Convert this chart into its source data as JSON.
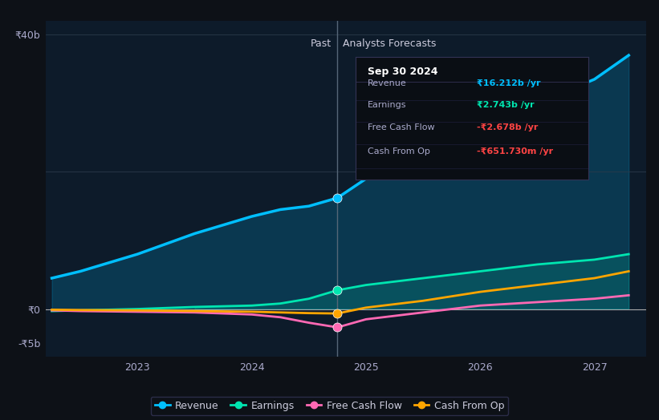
{
  "bg_color": "#0d1117",
  "chart_bg": "#0d1b2a",
  "ylim": [
    -7,
    42
  ],
  "xlim": [
    2022.2,
    2027.45
  ],
  "x_past_end": 2024.75,
  "x_label_past": "Past",
  "x_label_forecast": "Analysts Forecasts",
  "legend": [
    {
      "label": "Revenue",
      "color": "#00bfff"
    },
    {
      "label": "Earnings",
      "color": "#00e5b0"
    },
    {
      "label": "Free Cash Flow",
      "color": "#ff69b4"
    },
    {
      "label": "Cash From Op",
      "color": "#ffa500"
    }
  ],
  "tooltip": {
    "date": "Sep 30 2024",
    "rows": [
      {
        "label": "Revenue",
        "value": "₹16.212b /yr",
        "color": "#00bfff"
      },
      {
        "label": "Earnings",
        "value": "₹2.743b /yr",
        "color": "#00e5b0"
      },
      {
        "label": "Free Cash Flow",
        "value": "-₹2.678b /yr",
        "color": "#ff4444"
      },
      {
        "label": "Cash From Op",
        "value": "-₹651.730m /yr",
        "color": "#ff4444"
      }
    ]
  },
  "revenue": {
    "x": [
      2022.25,
      2022.5,
      2023.0,
      2023.5,
      2024.0,
      2024.25,
      2024.5,
      2024.75,
      2025.0,
      2025.5,
      2026.0,
      2026.5,
      2027.0,
      2027.3
    ],
    "y": [
      4.5,
      5.5,
      8.0,
      11.0,
      13.5,
      14.5,
      15.0,
      16.2,
      19.0,
      22.0,
      26.0,
      30.0,
      33.5,
      37.0
    ],
    "color": "#00bfff",
    "dot_x": 2024.75,
    "dot_y": 16.2
  },
  "earnings": {
    "x": [
      2022.25,
      2022.5,
      2023.0,
      2023.5,
      2024.0,
      2024.25,
      2024.5,
      2024.75,
      2025.0,
      2025.5,
      2026.0,
      2026.5,
      2027.0,
      2027.3
    ],
    "y": [
      -0.3,
      -0.2,
      0.0,
      0.3,
      0.5,
      0.8,
      1.5,
      2.743,
      3.5,
      4.5,
      5.5,
      6.5,
      7.2,
      8.0
    ],
    "color": "#00e5b0",
    "dot_x": 2024.75,
    "dot_y": 2.743
  },
  "fcf": {
    "x": [
      2022.25,
      2022.5,
      2023.0,
      2023.5,
      2024.0,
      2024.25,
      2024.5,
      2024.75,
      2025.0,
      2025.5,
      2026.0,
      2026.5,
      2027.0,
      2027.3
    ],
    "y": [
      -0.2,
      -0.3,
      -0.4,
      -0.5,
      -0.8,
      -1.2,
      -2.0,
      -2.678,
      -1.5,
      -0.5,
      0.5,
      1.0,
      1.5,
      2.0
    ],
    "color": "#ff69b4",
    "dot_x": 2024.75,
    "dot_y": -2.678
  },
  "cashfromop": {
    "x": [
      2022.25,
      2022.5,
      2023.0,
      2023.5,
      2024.0,
      2024.25,
      2024.5,
      2024.75,
      2025.0,
      2025.5,
      2026.0,
      2026.5,
      2027.0,
      2027.3
    ],
    "y": [
      -0.1,
      -0.15,
      -0.2,
      -0.3,
      -0.4,
      -0.5,
      -0.6,
      -0.65,
      0.2,
      1.2,
      2.5,
      3.5,
      4.5,
      5.5
    ],
    "color": "#ffa500",
    "dot_x": 2024.75,
    "dot_y": -0.65
  }
}
